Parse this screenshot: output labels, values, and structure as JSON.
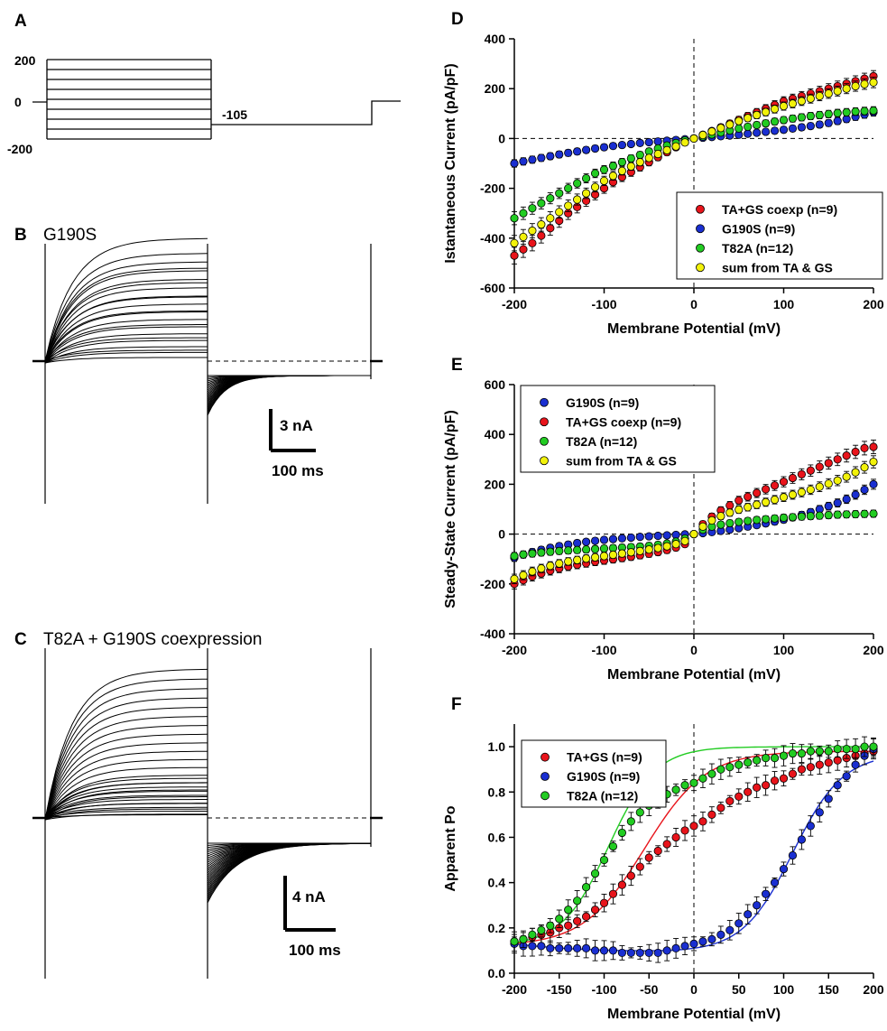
{
  "panels": {
    "a": {
      "letter": "A",
      "ticks": [
        "200",
        "0",
        "-200"
      ],
      "hold_label": "-105"
    },
    "b": {
      "letter": "B",
      "title": "G190S",
      "scale_current": "3 nA",
      "scale_time": "100 ms"
    },
    "c": {
      "letter": "C",
      "title": "T82A + G190S coexpression",
      "scale_current": "4 nA",
      "scale_time": "100 ms"
    }
  },
  "chart_data": [
    {
      "id": "D",
      "letter": "D",
      "type": "scatter",
      "xlabel": "Membrane Potential (mV)",
      "ylabel": "Istantaneous Current (pA/pF)",
      "xlim": [
        -200,
        200
      ],
      "ylim": [
        -600,
        400
      ],
      "xticks": [
        -200,
        -100,
        0,
        100,
        200
      ],
      "yticks": [
        -600,
        -400,
        -200,
        0,
        200,
        400
      ],
      "legend_position": "bottom-right",
      "x": [
        -200,
        -190,
        -180,
        -170,
        -160,
        -150,
        -140,
        -130,
        -120,
        -110,
        -100,
        -90,
        -80,
        -70,
        -60,
        -50,
        -40,
        -30,
        -20,
        -10,
        0,
        10,
        20,
        30,
        40,
        50,
        60,
        70,
        80,
        90,
        100,
        110,
        120,
        130,
        140,
        150,
        160,
        170,
        180,
        190,
        200
      ],
      "series": [
        {
          "name": "TA+GS coexp (n=9)",
          "color": "#e8141b",
          "values": [
            -470,
            -445,
            -420,
            -390,
            -360,
            -330,
            -300,
            -275,
            -250,
            -225,
            -200,
            -175,
            -155,
            -135,
            -115,
            -95,
            -75,
            -55,
            -35,
            -15,
            0,
            15,
            30,
            45,
            60,
            75,
            90,
            105,
            120,
            135,
            150,
            160,
            170,
            180,
            190,
            200,
            210,
            220,
            230,
            240,
            250
          ]
        },
        {
          "name": "G190S (n=9)",
          "color": "#1a2fd1",
          "values": [
            -100,
            -92,
            -85,
            -78,
            -71,
            -64,
            -58,
            -52,
            -46,
            -40,
            -35,
            -30,
            -26,
            -22,
            -18,
            -15,
            -12,
            -9,
            -6,
            -3,
            0,
            3,
            6,
            9,
            12,
            15,
            19,
            23,
            27,
            31,
            35,
            40,
            45,
            50,
            56,
            62,
            70,
            78,
            87,
            96,
            105
          ]
        },
        {
          "name": "T82A (n=12)",
          "color": "#22cc22",
          "values": [
            -320,
            -300,
            -280,
            -260,
            -240,
            -220,
            -200,
            -180,
            -160,
            -140,
            -125,
            -110,
            -95,
            -80,
            -66,
            -52,
            -40,
            -28,
            -18,
            -8,
            0,
            8,
            16,
            24,
            32,
            40,
            47,
            54,
            61,
            68,
            74,
            80,
            85,
            90,
            94,
            98,
            102,
            105,
            108,
            110,
            112
          ]
        },
        {
          "name": "sum from TA & GS",
          "color": "#f2f20a",
          "values": [
            -420,
            -395,
            -370,
            -345,
            -320,
            -295,
            -270,
            -245,
            -220,
            -195,
            -170,
            -150,
            -130,
            -112,
            -95,
            -78,
            -62,
            -47,
            -32,
            -16,
            0,
            14,
            28,
            42,
            56,
            70,
            82,
            94,
            106,
            118,
            130,
            140,
            150,
            160,
            170,
            180,
            190,
            200,
            210,
            218,
            225
          ]
        }
      ]
    },
    {
      "id": "E",
      "letter": "E",
      "type": "scatter",
      "xlabel": "Membrane Potential (mV)",
      "ylabel": "Steady-State Current (pA/pF)",
      "xlim": [
        -200,
        200
      ],
      "ylim": [
        -400,
        600
      ],
      "xticks": [
        -200,
        -100,
        0,
        100,
        200
      ],
      "yticks": [
        -400,
        -200,
        0,
        200,
        400,
        600
      ],
      "legend_position": "top-left",
      "x": [
        -200,
        -190,
        -180,
        -170,
        -160,
        -150,
        -140,
        -130,
        -120,
        -110,
        -100,
        -90,
        -80,
        -70,
        -60,
        -50,
        -40,
        -30,
        -20,
        -10,
        0,
        10,
        20,
        30,
        40,
        50,
        60,
        70,
        80,
        90,
        100,
        110,
        120,
        130,
        140,
        150,
        160,
        170,
        180,
        190,
        200
      ],
      "series": [
        {
          "name": "G190S (n=9)",
          "color": "#1a2fd1",
          "values": [
            -95,
            -82,
            -72,
            -63,
            -55,
            -48,
            -42,
            -36,
            -31,
            -27,
            -23,
            -20,
            -17,
            -14,
            -11,
            -9,
            -7,
            -5,
            -3,
            -1,
            0,
            4,
            8,
            13,
            18,
            24,
            30,
            36,
            43,
            50,
            58,
            67,
            77,
            88,
            100,
            112,
            125,
            140,
            158,
            178,
            200
          ]
        },
        {
          "name": "TA+GS coexp (n=9)",
          "color": "#e8141b",
          "values": [
            -200,
            -185,
            -170,
            -158,
            -147,
            -138,
            -130,
            -123,
            -117,
            -111,
            -106,
            -101,
            -96,
            -91,
            -85,
            -79,
            -72,
            -64,
            -54,
            -40,
            0,
            40,
            70,
            95,
            115,
            135,
            150,
            165,
            180,
            195,
            210,
            225,
            240,
            255,
            270,
            285,
            300,
            315,
            330,
            345,
            350
          ]
        },
        {
          "name": "T82A (n=12)",
          "color": "#22cc22",
          "values": [
            -88,
            -82,
            -78,
            -74,
            -71,
            -68,
            -66,
            -64,
            -62,
            -60,
            -58,
            -56,
            -54,
            -52,
            -50,
            -47,
            -43,
            -38,
            -30,
            -18,
            0,
            18,
            30,
            38,
            44,
            49,
            53,
            57,
            60,
            63,
            66,
            68,
            70,
            72,
            74,
            76,
            78,
            79,
            80,
            81,
            82
          ]
        },
        {
          "name": "sum from TA & GS",
          "color": "#f2f20a",
          "values": [
            -180,
            -165,
            -150,
            -138,
            -127,
            -118,
            -110,
            -104,
            -98,
            -93,
            -88,
            -83,
            -78,
            -73,
            -68,
            -62,
            -56,
            -49,
            -40,
            -28,
            0,
            30,
            55,
            72,
            86,
            98,
            108,
            118,
            128,
            138,
            148,
            158,
            168,
            178,
            190,
            202,
            215,
            230,
            248,
            268,
            290
          ]
        }
      ]
    },
    {
      "id": "F",
      "letter": "F",
      "type": "scatter",
      "xlabel": "Membrane Potential (mV)",
      "ylabel": "Apparent Po",
      "xlim": [
        -200,
        200
      ],
      "ylim": [
        0.0,
        1.1
      ],
      "xticks": [
        -200,
        -150,
        -100,
        -50,
        0,
        50,
        100,
        150,
        200
      ],
      "yticks": [
        "0.0",
        "0.2",
        "0.4",
        "0.6",
        "0.8",
        "1.0"
      ],
      "legend_position": "top-left",
      "x": [
        -200,
        -190,
        -180,
        -170,
        -160,
        -150,
        -140,
        -130,
        -120,
        -110,
        -100,
        -90,
        -80,
        -70,
        -60,
        -50,
        -40,
        -30,
        -20,
        -10,
        0,
        10,
        20,
        30,
        40,
        50,
        60,
        70,
        80,
        90,
        100,
        110,
        120,
        130,
        140,
        150,
        160,
        170,
        180,
        190,
        200
      ],
      "series": [
        {
          "name": "TA+GS (n=9)",
          "color": "#e8141b",
          "values": [
            0.14,
            0.15,
            0.16,
            0.17,
            0.18,
            0.2,
            0.21,
            0.23,
            0.25,
            0.28,
            0.31,
            0.35,
            0.39,
            0.43,
            0.47,
            0.51,
            0.54,
            0.57,
            0.6,
            0.63,
            0.65,
            0.67,
            0.7,
            0.73,
            0.76,
            0.78,
            0.8,
            0.82,
            0.83,
            0.85,
            0.86,
            0.88,
            0.9,
            0.91,
            0.92,
            0.93,
            0.94,
            0.95,
            0.96,
            0.97,
            0.98
          ]
        },
        {
          "name": "G190S (n=9)",
          "color": "#1a2fd1",
          "values": [
            0.13,
            0.12,
            0.12,
            0.12,
            0.11,
            0.11,
            0.11,
            0.11,
            0.11,
            0.1,
            0.1,
            0.1,
            0.09,
            0.09,
            0.09,
            0.09,
            0.09,
            0.1,
            0.11,
            0.12,
            0.13,
            0.14,
            0.15,
            0.17,
            0.19,
            0.22,
            0.26,
            0.3,
            0.35,
            0.4,
            0.46,
            0.52,
            0.59,
            0.65,
            0.71,
            0.77,
            0.83,
            0.87,
            0.92,
            0.96,
            0.99
          ]
        },
        {
          "name": "T82A (n=12)",
          "color": "#22cc22",
          "values": [
            0.14,
            0.15,
            0.17,
            0.19,
            0.21,
            0.24,
            0.28,
            0.32,
            0.38,
            0.44,
            0.5,
            0.56,
            0.62,
            0.67,
            0.71,
            0.74,
            0.77,
            0.79,
            0.81,
            0.83,
            0.84,
            0.86,
            0.88,
            0.9,
            0.91,
            0.92,
            0.93,
            0.94,
            0.95,
            0.95,
            0.96,
            0.97,
            0.97,
            0.98,
            0.98,
            0.98,
            0.99,
            0.99,
            0.99,
            1.0,
            1.0
          ]
        }
      ]
    }
  ]
}
